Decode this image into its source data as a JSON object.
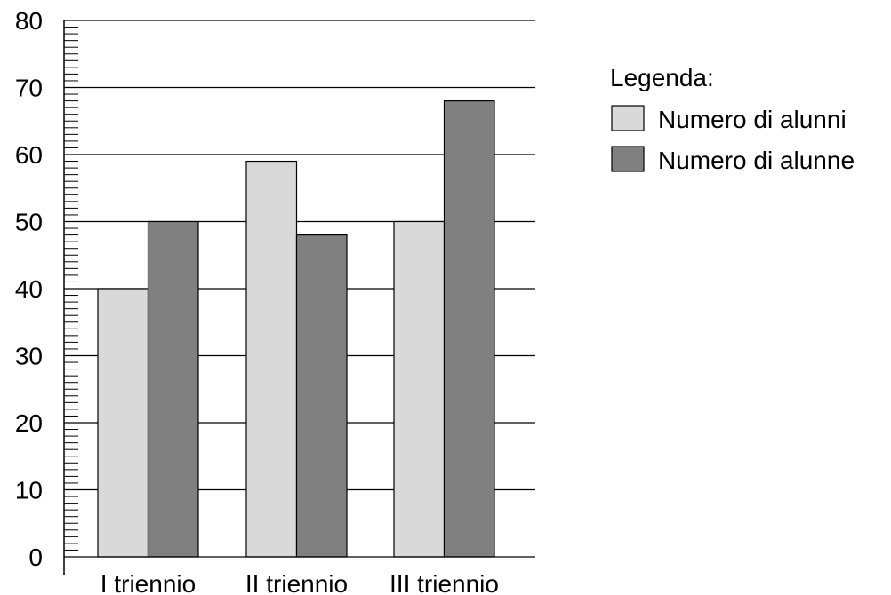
{
  "chart_data": {
    "type": "bar",
    "categories": [
      "I triennio",
      "II triennio",
      "III triennio"
    ],
    "series": [
      {
        "name": "Numero di alunni",
        "values": [
          40,
          59,
          50
        ],
        "color": "#d9d9d9"
      },
      {
        "name": "Numero di alunne",
        "values": [
          50,
          48,
          68
        ],
        "color": "#808080"
      }
    ],
    "ylim": [
      0,
      80
    ],
    "yticks": [
      0,
      10,
      20,
      30,
      40,
      50,
      60,
      70,
      80
    ],
    "minor_tick_step": 1,
    "grid": true,
    "legend": {
      "title": "Legenda:",
      "placement": "right"
    }
  }
}
